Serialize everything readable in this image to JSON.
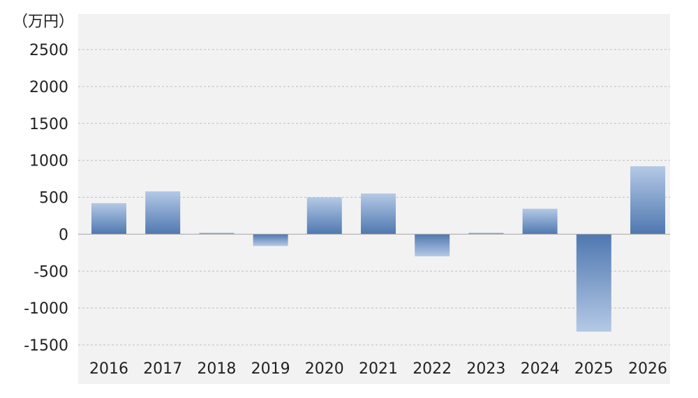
{
  "chart_data": {
    "type": "bar",
    "unit_label": "（万円）",
    "categories": [
      "2016",
      "2017",
      "2018",
      "2019",
      "2020",
      "2021",
      "2022",
      "2023",
      "2024",
      "2025",
      "2026"
    ],
    "values": [
      420,
      580,
      15,
      -160,
      500,
      550,
      -300,
      10,
      345,
      -1320,
      920
    ],
    "ylim": [
      -1500,
      2500
    ],
    "yticks": [
      "2500",
      "2000",
      "1500",
      "1000",
      "500",
      "0",
      "-500",
      "-1000",
      "-1500"
    ],
    "grid": true,
    "legend": "none",
    "colors": {
      "plot_bg": "#f2f2f2",
      "bar_dark": "#4f78b0",
      "bar_light": "#b4c9e6",
      "grid": "#bdbdbd",
      "zero_line": "#a6a6a6"
    }
  }
}
